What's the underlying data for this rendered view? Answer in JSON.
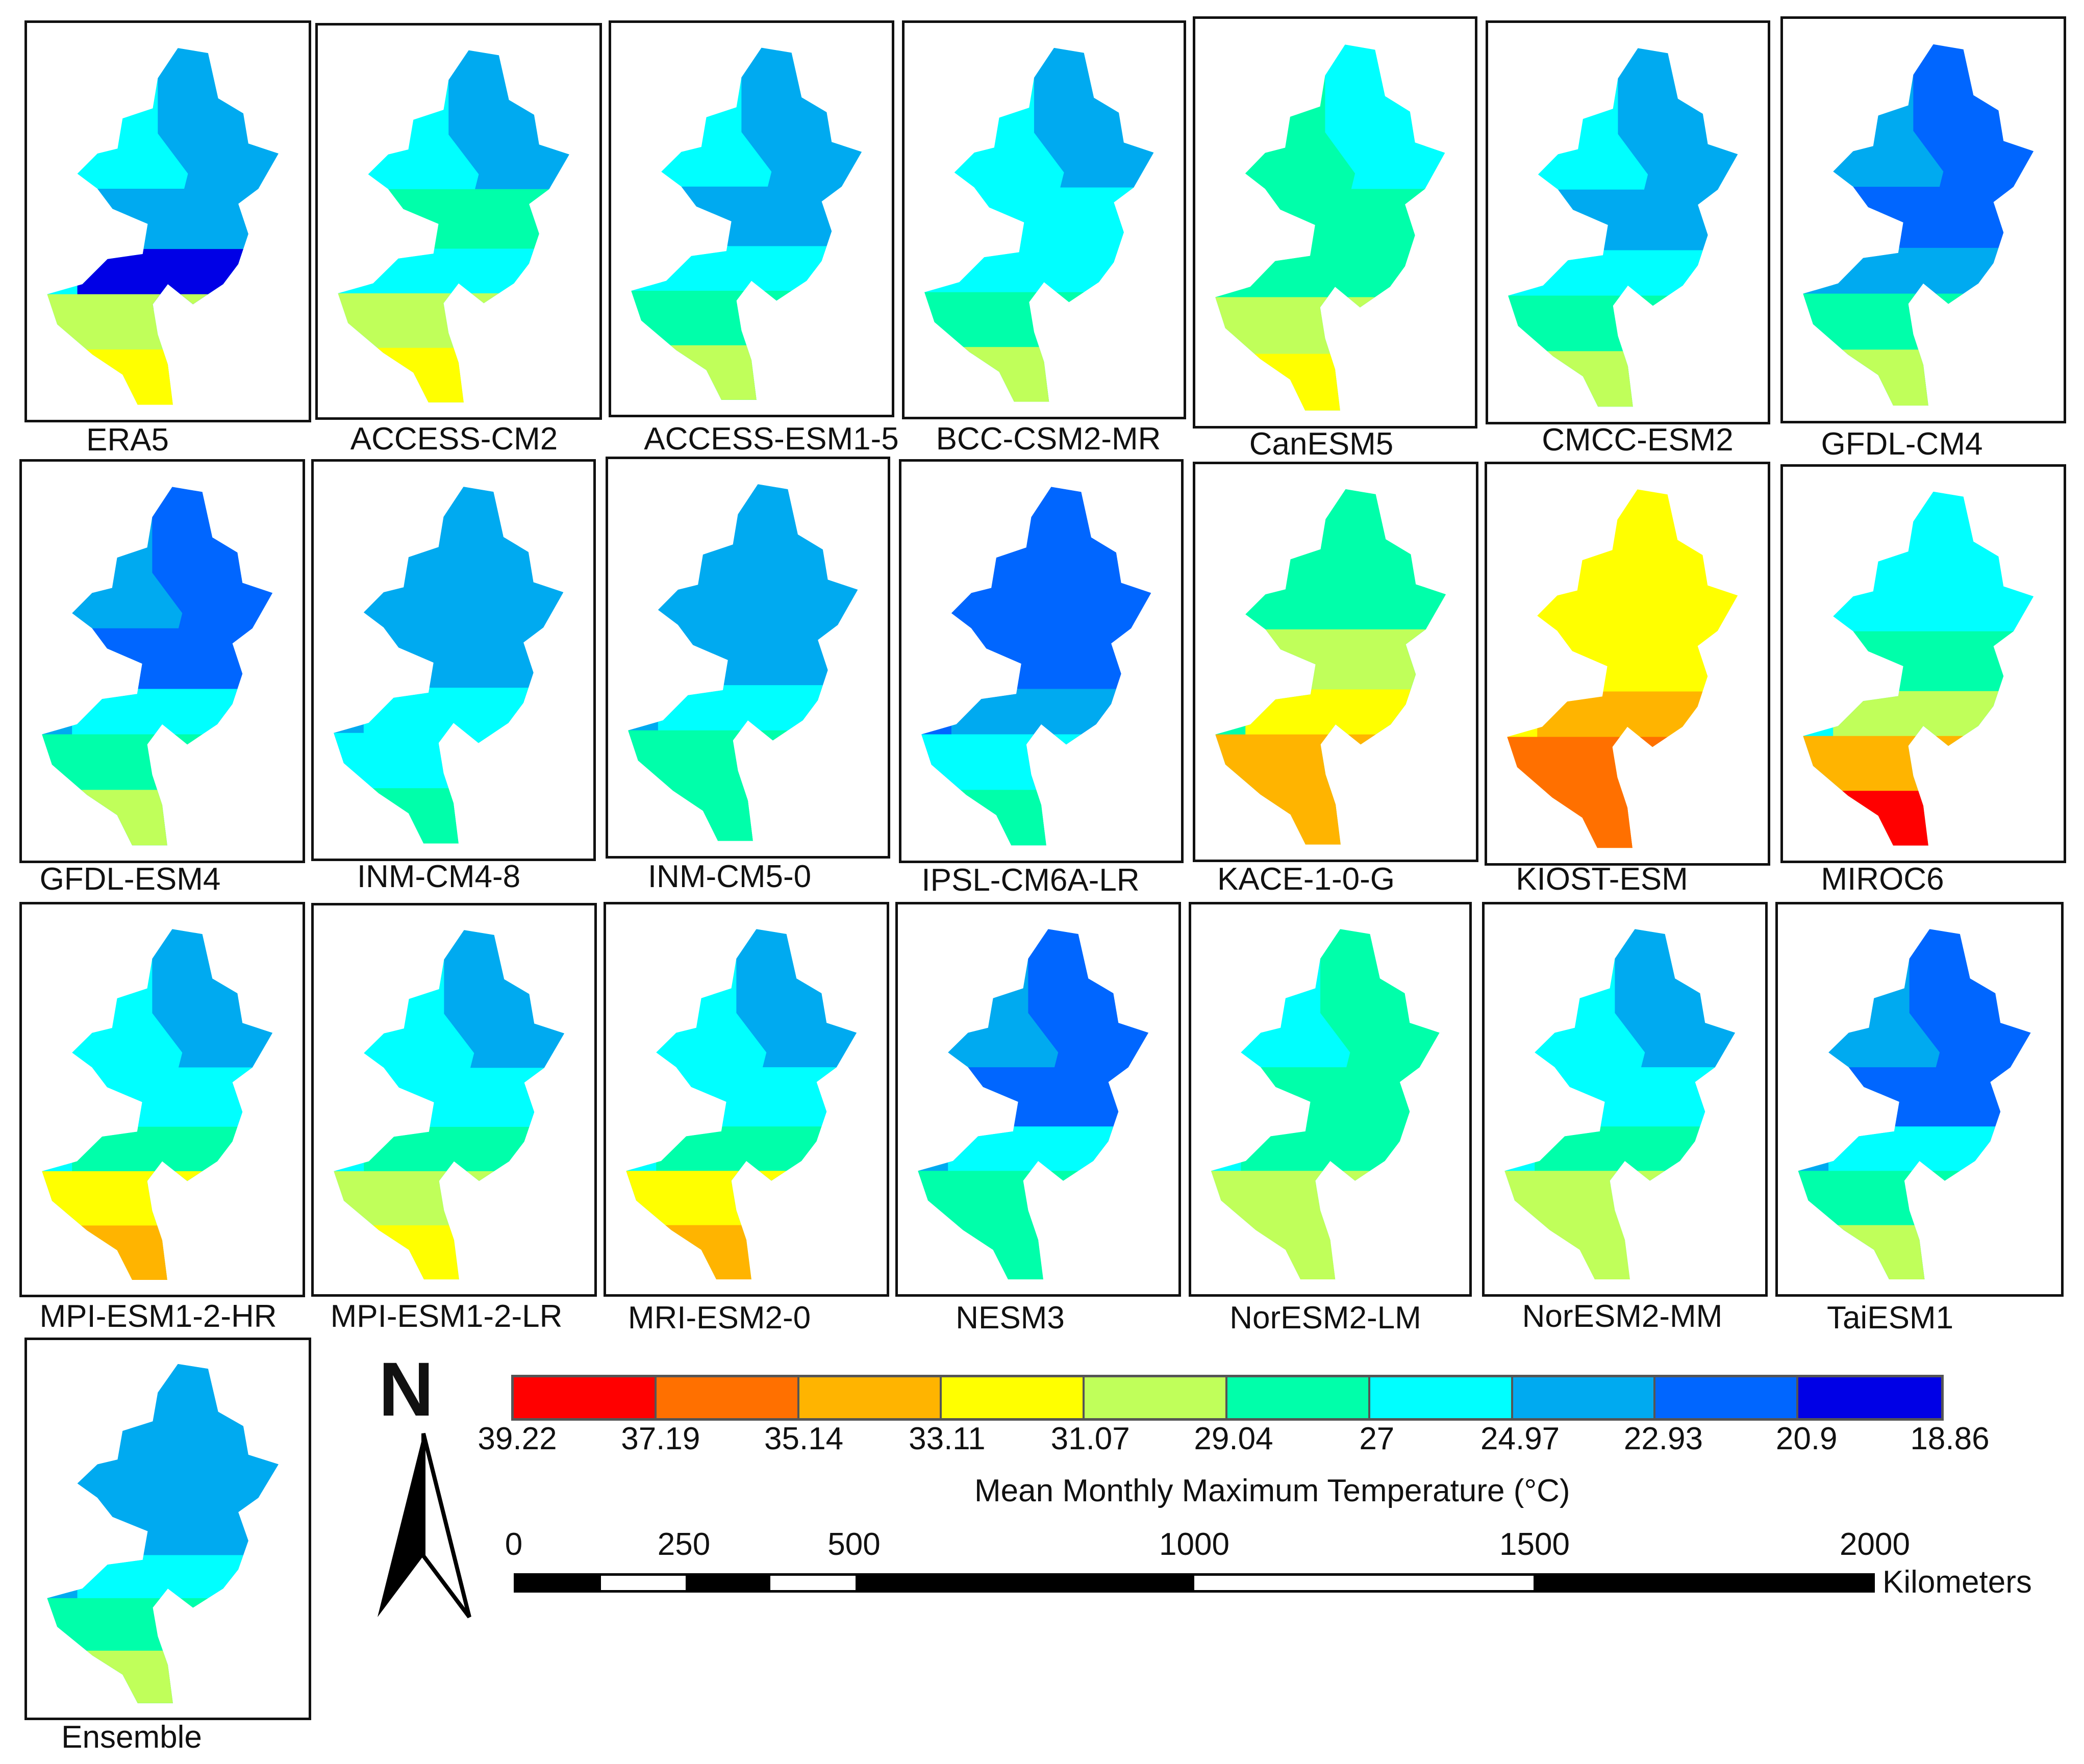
{
  "panels": [
    {
      "label": "ERA5",
      "palette": [
        "#00ffff",
        "#00aaf0",
        "#00aaf0",
        "#0066ff",
        "#0000e6",
        "#c0ff5a",
        "#ffff00"
      ]
    },
    {
      "label": "ACCESS-CM2",
      "palette": [
        "#00ffff",
        "#00aaf0",
        "#00ffaa",
        "#00ffaa",
        "#00ffff",
        "#c0ff5a",
        "#ffff00"
      ]
    },
    {
      "label": "ACCESS-ESM1-5",
      "palette": [
        "#00ffff",
        "#00aaf0",
        "#00aaf0",
        "#00aaf0",
        "#00ffff",
        "#00ffaa",
        "#c0ff5a"
      ]
    },
    {
      "label": "BCC-CSM2-MR",
      "palette": [
        "#00ffff",
        "#00aaf0",
        "#00ffff",
        "#00aaf0",
        "#00ffff",
        "#00ffaa",
        "#c0ff5a"
      ]
    },
    {
      "label": "CanESM5",
      "palette": [
        "#00ffaa",
        "#00ffff",
        "#00ffaa",
        "#00ffaa",
        "#00ffaa",
        "#c0ff5a",
        "#ffff00"
      ]
    },
    {
      "label": "CMCC-ESM2",
      "palette": [
        "#00ffff",
        "#00aaf0",
        "#00aaf0",
        "#00aaf0",
        "#00ffff",
        "#00ffaa",
        "#c0ff5a"
      ]
    },
    {
      "label": "GFDL-CM4",
      "palette": [
        "#00aaf0",
        "#0066ff",
        "#0066ff",
        "#0000e6",
        "#00aaf0",
        "#00ffaa",
        "#c0ff5a"
      ]
    },
    {
      "label": "GFDL-ESM4",
      "palette": [
        "#00aaf0",
        "#0066ff",
        "#0066ff",
        "#0000e6",
        "#00ffff",
        "#00ffaa",
        "#c0ff5a"
      ]
    },
    {
      "label": "INM-CM4-8",
      "palette": [
        "#00aaf0",
        "#00aaf0",
        "#00aaf0",
        "#00aaf0",
        "#00ffff",
        "#00ffff",
        "#00ffaa"
      ]
    },
    {
      "label": "INM-CM5-0",
      "palette": [
        "#00aaf0",
        "#00aaf0",
        "#00aaf0",
        "#00aaf0",
        "#00ffff",
        "#00ffaa",
        "#00ffaa"
      ]
    },
    {
      "label": "IPSL-CM6A-LR",
      "palette": [
        "#0066ff",
        "#0066ff",
        "#0066ff",
        "#0000e6",
        "#00aaf0",
        "#00ffff",
        "#00ffaa"
      ]
    },
    {
      "label": "KACE-1-0-G",
      "palette": [
        "#00ffaa",
        "#00ffaa",
        "#c0ff5a",
        "#00ffff",
        "#ffff00",
        "#ffb400",
        "#ffb400"
      ]
    },
    {
      "label": "KIOST-ESM",
      "palette": [
        "#ffff00",
        "#ffff00",
        "#ffff00",
        "#c0ff5a",
        "#ffb400",
        "#ff7000",
        "#ff7000"
      ]
    },
    {
      "label": "MIROC6",
      "palette": [
        "#00ffff",
        "#00ffff",
        "#00ffaa",
        "#00aaf0",
        "#c0ff5a",
        "#ffb400",
        "#ff0000"
      ]
    },
    {
      "label": "MPI-ESM1-2-HR",
      "palette": [
        "#00ffff",
        "#00aaf0",
        "#00ffff",
        "#00aaf0",
        "#00ffaa",
        "#ffff00",
        "#ffb400"
      ]
    },
    {
      "label": "MPI-ESM1-2-LR",
      "palette": [
        "#00ffff",
        "#00aaf0",
        "#00ffff",
        "#0066ff",
        "#00ffaa",
        "#c0ff5a",
        "#ffff00"
      ]
    },
    {
      "label": "MRI-ESM2-0",
      "palette": [
        "#00ffff",
        "#00aaf0",
        "#00ffff",
        "#00aaf0",
        "#00ffaa",
        "#ffff00",
        "#ffb400"
      ]
    },
    {
      "label": "NESM3",
      "palette": [
        "#00aaf0",
        "#0066ff",
        "#0066ff",
        "#0000e6",
        "#00ffff",
        "#00ffaa",
        "#00ffaa"
      ]
    },
    {
      "label": "NorESM2-LM",
      "palette": [
        "#00ffff",
        "#00ffaa",
        "#00ffaa",
        "#00ffff",
        "#00ffaa",
        "#c0ff5a",
        "#c0ff5a"
      ]
    },
    {
      "label": "NorESM2-MM",
      "palette": [
        "#00ffff",
        "#00aaf0",
        "#00ffff",
        "#0066ff",
        "#00ffaa",
        "#c0ff5a",
        "#c0ff5a"
      ]
    },
    {
      "label": "TaiESM1",
      "palette": [
        "#00aaf0",
        "#0066ff",
        "#0066ff",
        "#0066ff",
        "#00ffff",
        "#00ffaa",
        "#c0ff5a"
      ]
    },
    {
      "label": "Ensemble",
      "palette": [
        "#00aaf0",
        "#00aaf0",
        "#00aaf0",
        "#0066ff",
        "#00ffff",
        "#00ffaa",
        "#c0ff5a"
      ]
    }
  ],
  "legend": {
    "title": "Mean Monthly Maximum Temperature (°C)",
    "colors": [
      "#ff0000",
      "#ff7000",
      "#ffb400",
      "#ffff00",
      "#c0ff5a",
      "#00ffaa",
      "#00ffff",
      "#00aaf0",
      "#0066ff",
      "#0000e6"
    ],
    "tick_labels": [
      "39.22",
      "37.19",
      "35.14",
      "33.11",
      "31.07",
      "29.04",
      "27",
      "24.97",
      "22.93",
      "20.9",
      "18.86"
    ]
  },
  "scale": {
    "tick_labels": [
      "0",
      "250",
      "500",
      "1000",
      "1500",
      "2000"
    ],
    "unit": "Kilometers"
  },
  "north_arrow": {
    "letter": "N"
  }
}
